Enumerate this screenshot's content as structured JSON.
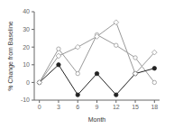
{
  "chart_data": {
    "type": "line",
    "x": [
      0,
      3,
      6,
      9,
      12,
      15,
      18
    ],
    "series": [
      {
        "color": "#999999",
        "marker": "open_circle",
        "values": [
          0,
          19,
          5,
          27,
          21,
          14,
          0
        ]
      },
      {
        "color": "#222222",
        "marker": "circle",
        "values": [
          0,
          10,
          -7,
          5,
          -7,
          5,
          8
        ]
      },
      {
        "color": "#999999",
        "marker": "open_diamond",
        "values": [
          0,
          15,
          20,
          26,
          34,
          5,
          17
        ]
      }
    ],
    "xlabel": "Month",
    "ylabel": "% Change from Baseline",
    "xlim": [
      -0.8,
      18.8
    ],
    "xticks": [
      0,
      3,
      6,
      9,
      12,
      15,
      18
    ],
    "ylim": [
      -10,
      40
    ],
    "yticks": [
      -10,
      0,
      10,
      20,
      30,
      40
    ],
    "grid": false
  }
}
